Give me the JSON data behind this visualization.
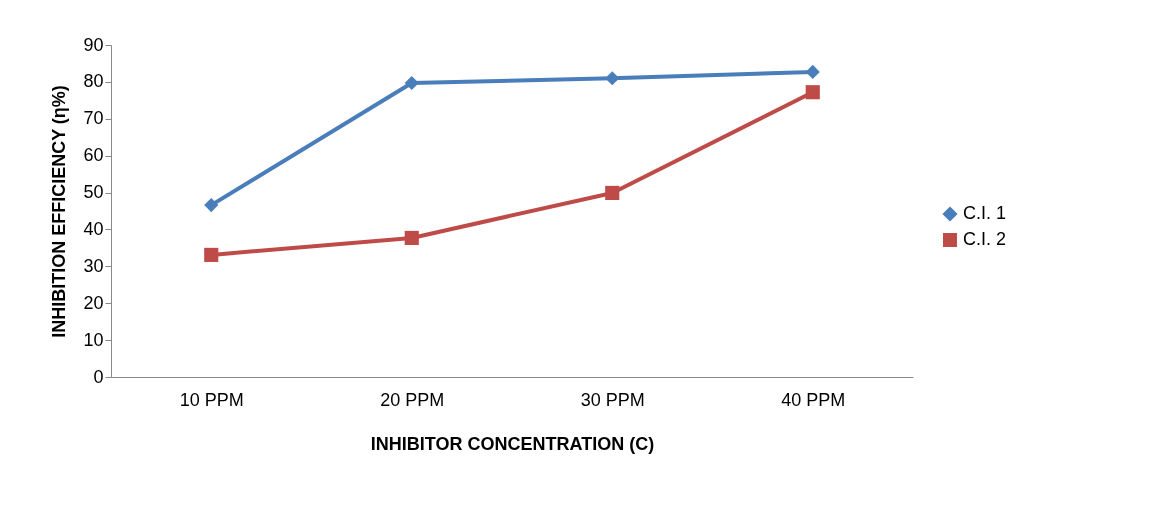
{
  "chart_data": {
    "type": "line",
    "xlabel": "INHIBITOR CONCENTRATION (C)",
    "ylabel": "INHIBITION EFFICIENCY (η%)",
    "categories": [
      "10 PPM",
      "20 PPM",
      "30 PPM",
      "40 PPM"
    ],
    "series": [
      {
        "name": "C.I. 1",
        "color": "#4a7ebb",
        "marker": "diamond",
        "values": [
          46.6,
          79.7,
          81.0,
          82.7
        ]
      },
      {
        "name": "C.I. 2",
        "color": "#be4b48",
        "marker": "square",
        "values": [
          33.1,
          37.7,
          49.9,
          77.2
        ]
      }
    ],
    "ylim": [
      0,
      90
    ],
    "yticks": [
      0,
      10,
      20,
      30,
      40,
      50,
      60,
      70,
      80,
      90
    ],
    "grid": false,
    "legend": "right",
    "line_style": "solid"
  }
}
